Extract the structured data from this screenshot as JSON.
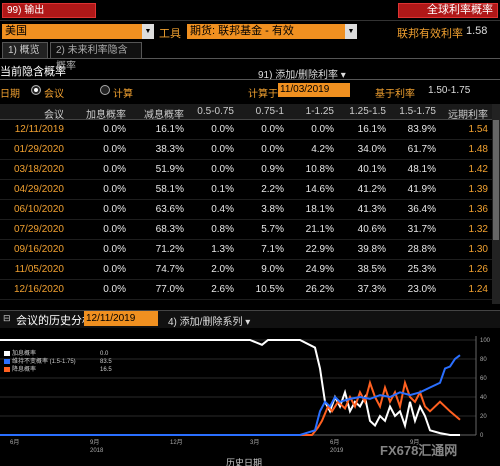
{
  "toolbar": {
    "export_label": "99) 输出",
    "title_label": "全球利率概率"
  },
  "filters": {
    "country": "美国",
    "tool_label": "工具",
    "futures": "期货: 联邦基金 - 有效",
    "effective_rate_label": "联邦有效利率",
    "effective_rate_value": "1.58"
  },
  "tabs": [
    "1) 概览",
    "2) 未来利率隐含概率"
  ],
  "section": {
    "title": "当前隐含概率",
    "add_remove": "91) 添加/删除利率 ▾",
    "date_label": "日期",
    "radio_meeting": "会议",
    "radio_calc": "计算",
    "calc_label": "计算于",
    "calc_date": "11/03/2019",
    "base_label": "基于利率",
    "base_value": "1.50-1.75"
  },
  "table": {
    "headers": [
      "会议",
      "加息概率",
      "减息概率",
      "0.5-0.75",
      "0.75-1",
      "1-1.25",
      "1.25-1.5",
      "1.5-1.75",
      "远期利率"
    ],
    "rows": [
      [
        "12/11/2019",
        "0.0%",
        "16.1%",
        "0.0%",
        "0.0%",
        "0.0%",
        "16.1%",
        "83.9%",
        "1.54"
      ],
      [
        "01/29/2020",
        "0.0%",
        "38.3%",
        "0.0%",
        "0.0%",
        "4.2%",
        "34.0%",
        "61.7%",
        "1.48"
      ],
      [
        "03/18/2020",
        "0.0%",
        "51.9%",
        "0.0%",
        "0.9%",
        "10.8%",
        "40.1%",
        "48.1%",
        "1.42"
      ],
      [
        "04/29/2020",
        "0.0%",
        "58.1%",
        "0.1%",
        "2.2%",
        "14.6%",
        "41.2%",
        "41.9%",
        "1.39"
      ],
      [
        "06/10/2020",
        "0.0%",
        "63.6%",
        "0.4%",
        "3.8%",
        "18.1%",
        "41.3%",
        "36.4%",
        "1.36"
      ],
      [
        "07/29/2020",
        "0.0%",
        "68.3%",
        "0.8%",
        "5.7%",
        "21.1%",
        "40.6%",
        "31.7%",
        "1.32"
      ],
      [
        "09/16/2020",
        "0.0%",
        "71.2%",
        "1.3%",
        "7.1%",
        "22.9%",
        "39.8%",
        "28.8%",
        "1.30"
      ],
      [
        "11/05/2020",
        "0.0%",
        "74.7%",
        "2.0%",
        "9.0%",
        "24.9%",
        "38.5%",
        "25.3%",
        "1.26"
      ],
      [
        "12/16/2020",
        "0.0%",
        "77.0%",
        "2.6%",
        "10.5%",
        "26.2%",
        "37.3%",
        "23.0%",
        "1.24"
      ]
    ]
  },
  "history": {
    "title": "会议的历史分析",
    "date": "12/11/2019",
    "add_remove": "4) 添加/删除系列 ▾",
    "x_axis_label": "历史日期",
    "x_ticks": [
      "6月",
      "9月",
      "12月",
      "3月",
      "6月",
      "9月"
    ],
    "year_labels": [
      "2018",
      "2019"
    ],
    "y_ticks": [
      "100",
      "80",
      "60",
      "40",
      "20",
      "0"
    ],
    "legend": [
      {
        "name": "加息概率",
        "value": "0.0",
        "color": "#ffffff"
      },
      {
        "name": "维持不变概率 (1.5-1.75)",
        "value": "83.5",
        "color": "#2a6fff"
      },
      {
        "name": "降息概率",
        "value": "16.5",
        "color": "#ff6020"
      }
    ],
    "watermark": "FX678汇通网"
  },
  "colors": {
    "accent_orange": "#f09020",
    "label_orange": "#f0a030",
    "button_red": "#b01818"
  }
}
